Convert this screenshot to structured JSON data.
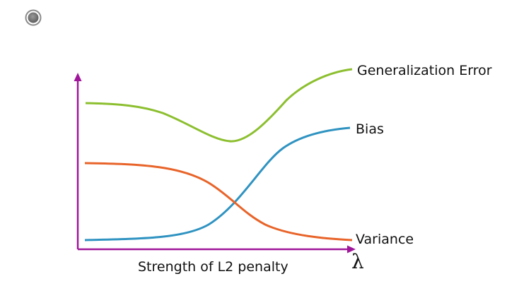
{
  "diagram": {
    "x_axis_label": "Strength of L2 penalty",
    "x_axis_symbol": "λ",
    "curves": [
      {
        "name": "Generalization Error",
        "color": "#8cbf2f"
      },
      {
        "name": "Bias",
        "color": "#2f93c1"
      },
      {
        "name": "Variance",
        "color": "#e8642a"
      }
    ],
    "axis_color": "#a0169a"
  },
  "icons": {
    "slide_bullet": "circle-bullet-icon"
  }
}
